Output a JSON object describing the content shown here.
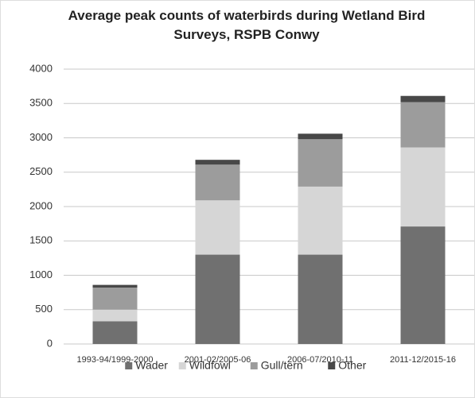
{
  "chart_data": {
    "type": "stacked-bar",
    "title": "Average peak counts of waterbirds during Wetland Bird Surveys, RSPB Conwy",
    "categories": [
      "1993-94/1999-2000",
      "2001-02/2005-06",
      "2006-07/2010-11",
      "2011-12/2015-16"
    ],
    "series": [
      {
        "name": "Wader",
        "color": "#707070",
        "values": [
          330,
          1300,
          1300,
          1710
        ]
      },
      {
        "name": "Wildfowl",
        "color": "#d6d6d6",
        "values": [
          170,
          790,
          990,
          1150
        ]
      },
      {
        "name": "Gull/tern",
        "color": "#9c9c9c",
        "values": [
          320,
          520,
          690,
          660
        ]
      },
      {
        "name": "Other",
        "color": "#484848",
        "values": [
          40,
          70,
          80,
          90
        ]
      }
    ],
    "ylim": [
      0,
      4000
    ],
    "yticks": [
      0,
      500,
      1000,
      1500,
      2000,
      2500,
      3000,
      3500,
      4000
    ],
    "grid": true,
    "legend": "bottom"
  }
}
